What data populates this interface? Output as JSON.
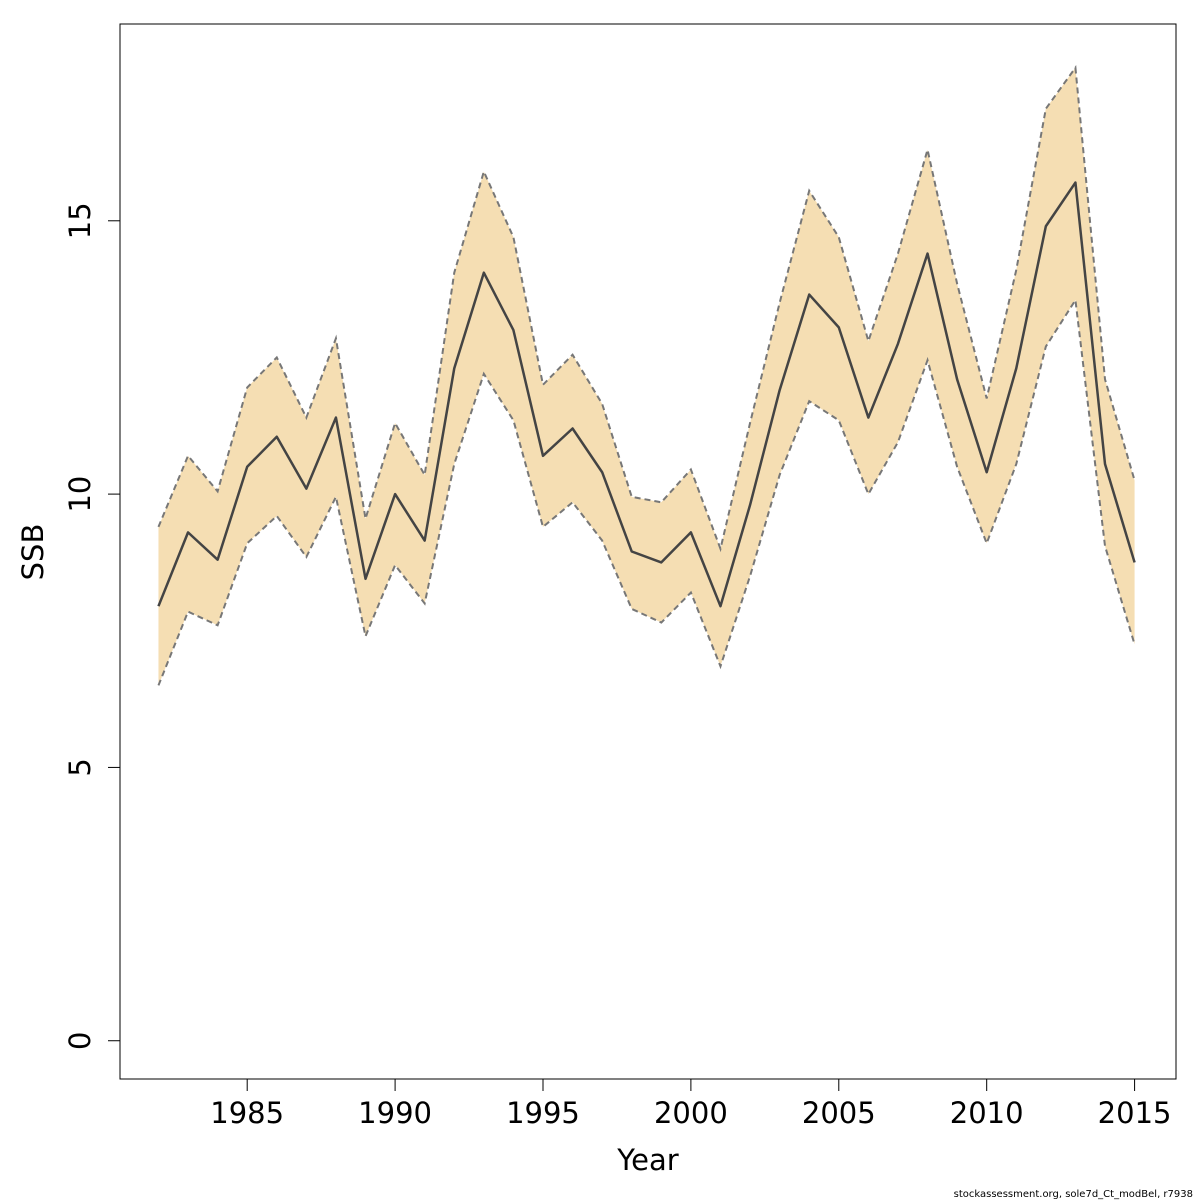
{
  "chart_data": {
    "type": "area",
    "title": "",
    "xlabel": "Year",
    "ylabel": "SSB",
    "xlim": [
      1980.7,
      2016.4
    ],
    "ylim": [
      -0.7,
      18.6
    ],
    "xticks": [
      1985,
      1990,
      1995,
      2000,
      2005,
      2010,
      2015
    ],
    "yticks": [
      0,
      5,
      10,
      15
    ],
    "x": [
      1982,
      1983,
      1984,
      1985,
      1986,
      1987,
      1988,
      1989,
      1990,
      1991,
      1992,
      1993,
      1994,
      1995,
      1996,
      1997,
      1998,
      1999,
      2000,
      2001,
      2002,
      2003,
      2004,
      2005,
      2006,
      2007,
      2008,
      2009,
      2010,
      2011,
      2012,
      2013,
      2014,
      2015
    ],
    "series": [
      {
        "role": "estimate",
        "values": [
          7.95,
          9.3,
          8.8,
          10.5,
          11.05,
          10.1,
          11.4,
          8.45,
          10.0,
          9.15,
          12.3,
          14.05,
          13.0,
          10.7,
          11.2,
          10.4,
          8.95,
          8.75,
          9.3,
          7.95,
          9.8,
          11.9,
          13.65,
          13.05,
          11.4,
          12.75,
          14.4,
          12.1,
          10.4,
          12.3,
          14.9,
          15.7,
          10.55,
          8.75
        ]
      },
      {
        "role": "upper",
        "values": [
          9.4,
          10.7,
          10.05,
          11.95,
          12.5,
          11.4,
          12.85,
          9.55,
          11.3,
          10.35,
          14.05,
          15.9,
          14.7,
          12.0,
          12.55,
          11.65,
          9.95,
          9.85,
          10.45,
          9.0,
          11.3,
          13.5,
          15.55,
          14.7,
          12.8,
          14.4,
          16.3,
          13.85,
          11.75,
          14.1,
          17.05,
          17.8,
          12.1,
          10.25
        ]
      },
      {
        "role": "lower",
        "values": [
          6.5,
          7.85,
          7.6,
          9.1,
          9.6,
          8.85,
          9.95,
          7.4,
          8.7,
          8.0,
          10.55,
          12.2,
          11.35,
          9.4,
          9.85,
          9.15,
          7.9,
          7.65,
          8.2,
          6.85,
          8.5,
          10.35,
          11.7,
          11.35,
          10.0,
          10.95,
          12.45,
          10.5,
          9.1,
          10.55,
          12.7,
          13.55,
          9.05,
          7.25
        ]
      }
    ],
    "grid": false,
    "legend": "none",
    "colors": {
      "band_fill": "#F5DEB3",
      "band_edge": "#777777",
      "estimate_line": "#444444",
      "axis": "#000000"
    }
  },
  "footer": {
    "note": "stockassessment.org, sole7d_Ct_modBel, r7938"
  }
}
